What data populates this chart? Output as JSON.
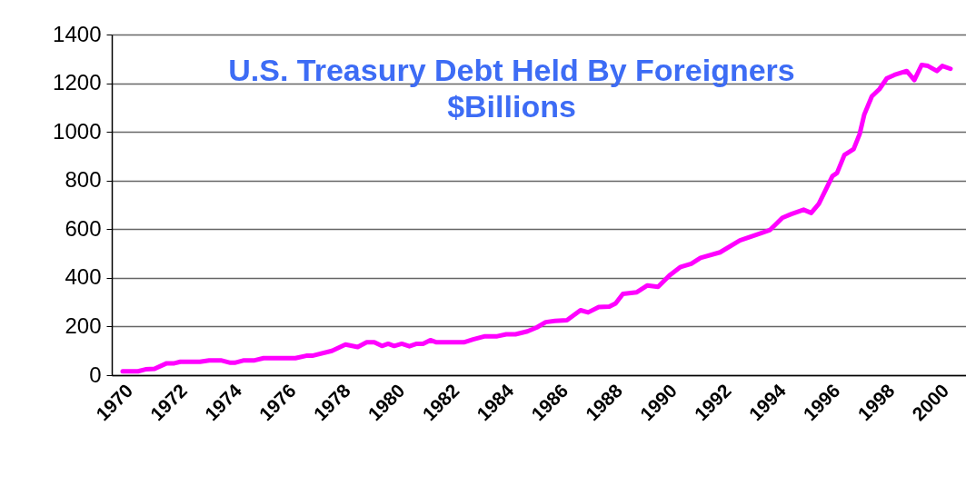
{
  "chart_data": {
    "type": "line",
    "title": "U.S. Treasury Debt Held By Foreigners",
    "subtitle": "$Billions",
    "x": [
      1970.0,
      1970.56,
      1970.84,
      1971.17,
      1971.62,
      1971.9,
      1972.12,
      1972.84,
      1973.18,
      1973.61,
      1973.96,
      1974.12,
      1974.46,
      1974.85,
      1975.18,
      1976.35,
      1976.75,
      1976.97,
      1977.69,
      1978.19,
      1978.64,
      1978.97,
      1979.25,
      1979.53,
      1979.76,
      1979.98,
      1980.26,
      1980.54,
      1980.81,
      1981.04,
      1981.31,
      1981.54,
      1982.54,
      1982.88,
      1983.32,
      1983.77,
      1984.1,
      1984.44,
      1984.88,
      1985.22,
      1985.55,
      1985.89,
      1986.33,
      1986.83,
      1987.11,
      1987.5,
      1987.89,
      1988.12,
      1988.39,
      1988.9,
      1989.29,
      1989.68,
      1990.12,
      1990.51,
      1990.9,
      1991.24,
      1991.96,
      1992.69,
      1993.3,
      1993.8,
      1994.25,
      1994.58,
      1995.03,
      1995.31,
      1995.59,
      1996.09,
      1996.26,
      1996.53,
      1996.87,
      1997.09,
      1997.26,
      1997.54,
      1997.82,
      1998.09,
      1998.37,
      1998.82,
      1999.1,
      1999.37,
      1999.6,
      1999.93,
      2000.13,
      2000.43
    ],
    "series": [
      {
        "color": "#ff00ff",
        "values": [
          16,
          16,
          24,
          26,
          49,
          49,
          55,
          55,
          61,
          61,
          51,
          51,
          61,
          61,
          70,
          70,
          80,
          80,
          100,
          126,
          116,
          135,
          135,
          120,
          129,
          120,
          129,
          119,
          129,
          129,
          144,
          135,
          135,
          147,
          160,
          160,
          168,
          168,
          180,
          196,
          218,
          223,
          226,
          267,
          258,
          280,
          282,
          295,
          334,
          341,
          369,
          363,
          412,
          445,
          458,
          482,
          505,
          554,
          577,
          597,
          647,
          662,
          680,
          667,
          704,
          818,
          831,
          905,
          929,
          991,
          1071,
          1146,
          1176,
          1220,
          1234,
          1250,
          1213,
          1275,
          1271,
          1250,
          1271,
          1259
        ]
      }
    ],
    "xlim": [
      1969.6,
      2001.0
    ],
    "xticks": [
      1970,
      1972,
      1974,
      1976,
      1978,
      1980,
      1982,
      1984,
      1986,
      1988,
      1990,
      1992,
      1994,
      1996,
      1998,
      2000
    ],
    "ylim": [
      0,
      1400
    ],
    "yticks": [
      0,
      200,
      400,
      600,
      800,
      1000,
      1200,
      1400
    ],
    "grid": "y",
    "legend": false,
    "marker": "none",
    "line_style": "solid"
  }
}
